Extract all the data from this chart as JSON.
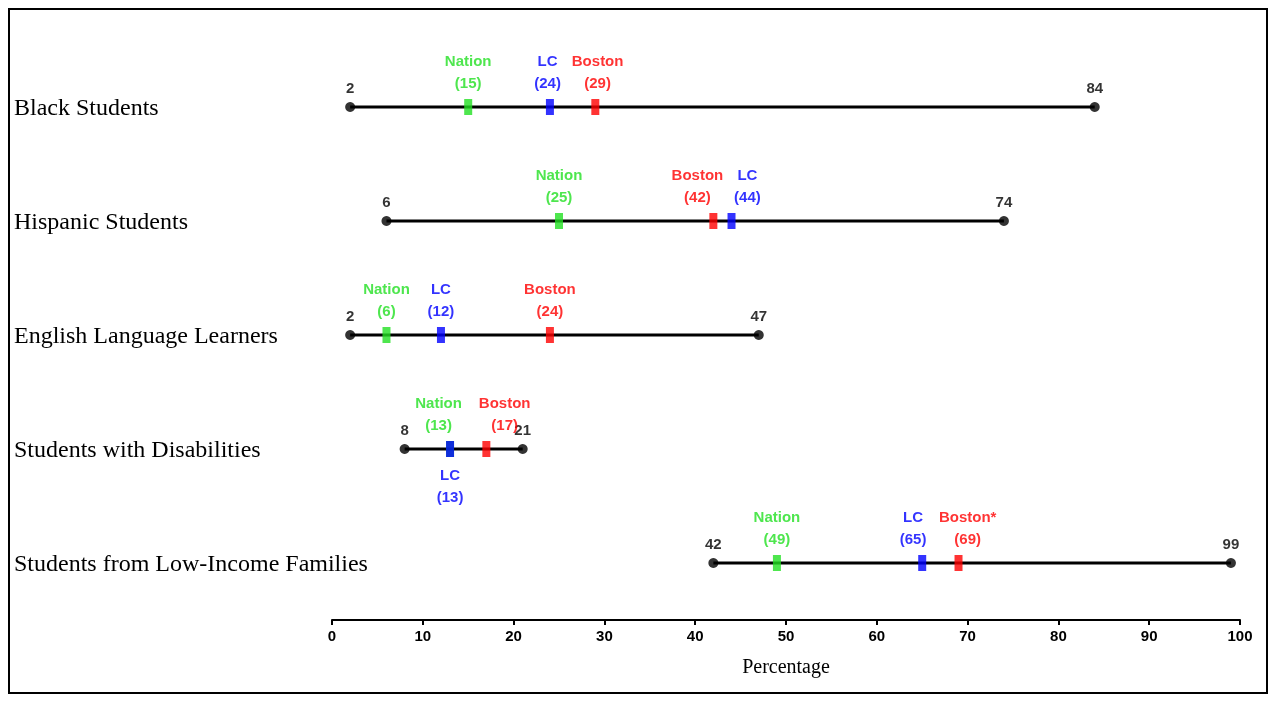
{
  "chart_data": {
    "type": "bar",
    "orientation": "horizontal",
    "xlabel": "Percentage",
    "categories": [
      "Black Students",
      "Hispanic Students",
      "English Language Learners",
      "Students with Disabilities",
      "Students from Low-Income Families"
    ],
    "xlim": [
      0,
      100
    ],
    "xticks": [
      0,
      10,
      20,
      30,
      40,
      50,
      60,
      70,
      80,
      90,
      100
    ],
    "series": [
      {
        "type": "bar",
        "color": "#000000",
        "base": [
          2,
          6,
          2,
          8,
          42
        ],
        "values": [
          82,
          68,
          45,
          13,
          57
        ]
      },
      {
        "type": "scatter",
        "marker": "circle",
        "color": "#000000",
        "values": [
          2,
          6,
          2,
          8,
          42
        ],
        "value_labels": [
          "2",
          "6",
          "2",
          "8",
          "42"
        ]
      },
      {
        "type": "scatter",
        "marker": "circle",
        "color": "#000000",
        "values": [
          84,
          74,
          47,
          21,
          99
        ],
        "value_labels": [
          "84",
          "74",
          "47",
          "21",
          "99"
        ]
      },
      {
        "type": "scatter",
        "color": "#22e022",
        "values": [
          15,
          25,
          6,
          13,
          49
        ],
        "value_labels": [
          "Nation\n(15)",
          "Nation\n(25)",
          "Nation\n(6)",
          "Nation\n(13)",
          "Nation\n(49)"
        ]
      },
      {
        "type": "scatter",
        "color": "#0000ff",
        "values": [
          24,
          44,
          12,
          13,
          65
        ],
        "value_labels": [
          "LC\n(24)",
          "LC\n(44)",
          "LC\n(12)",
          "LC\n(13)",
          "LC\n(65)"
        ]
      },
      {
        "type": "scatter",
        "color": "#ff0000",
        "values": [
          29,
          42,
          24,
          17,
          69
        ],
        "value_labels": [
          "Boston\n(29)",
          "Boston\n(42)",
          "Boston\n(24)",
          "Boston\n(17)",
          "Boston*\n(69)"
        ]
      }
    ]
  }
}
